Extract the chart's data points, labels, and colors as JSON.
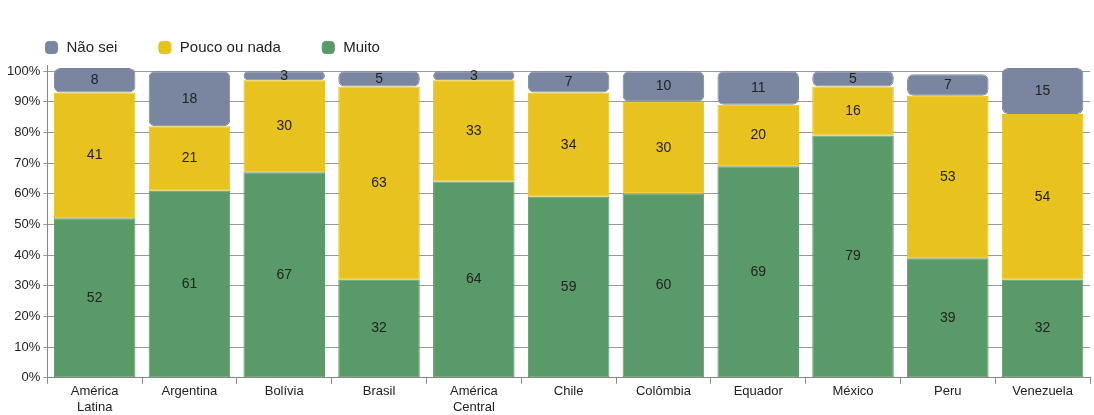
{
  "chart_data": {
    "type": "bar",
    "stacked": true,
    "categories": [
      "América Latina",
      "Argentina",
      "Bolívia",
      "Brasil",
      "América Central",
      "Chile",
      "Colômbia",
      "Equador",
      "México",
      "Peru",
      "Venezuela"
    ],
    "series": [
      {
        "name": "Muito",
        "color": "#5a9a68",
        "values": [
          52,
          61,
          67,
          32,
          64,
          59,
          60,
          69,
          79,
          39,
          32
        ]
      },
      {
        "name": "Pouco ou nada",
        "color": "#e8c21e",
        "values": [
          41,
          21,
          30,
          63,
          33,
          34,
          30,
          20,
          16,
          53,
          54
        ]
      },
      {
        "name": "Não sei",
        "color": "#7a86a0",
        "values": [
          8,
          18,
          3,
          5,
          3,
          7,
          10,
          11,
          5,
          7,
          15
        ]
      }
    ],
    "ylim": [
      0,
      102
    ],
    "yticks": [
      {
        "value": 0,
        "label": "0%"
      },
      {
        "value": 10,
        "label": "10%"
      },
      {
        "value": 20,
        "label": "20%"
      },
      {
        "value": 30,
        "label": "30%"
      },
      {
        "value": 40,
        "label": "40%"
      },
      {
        "value": 50,
        "label": "50%"
      },
      {
        "value": 60,
        "label": "60%"
      },
      {
        "value": 70,
        "label": "70%"
      },
      {
        "value": 80,
        "label": "80%"
      },
      {
        "value": 90,
        "label": "90%"
      },
      {
        "value": 100,
        "label": "100%"
      }
    ],
    "grid": "y",
    "legend": "top left",
    "data_labels": true
  }
}
